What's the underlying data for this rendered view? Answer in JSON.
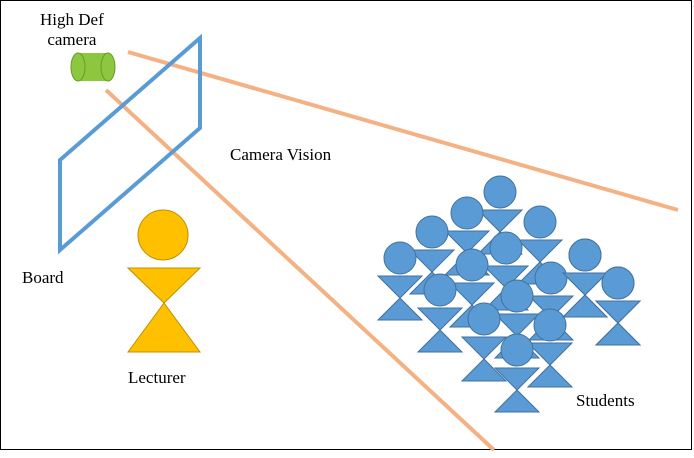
{
  "labels": {
    "camera_line1": "High Def",
    "camera_line2": "camera",
    "camera_vision": "Camera Vision",
    "board": "Board",
    "lecturer": "Lecturer",
    "students": "Students"
  },
  "colors": {
    "camera_fill": "#8dc63f",
    "camera_stroke": "#6a9a2a",
    "board_stroke": "#5b9bd5",
    "vision_line": "#f4b183",
    "lecturer_fill": "#ffc000",
    "lecturer_stroke": "#bf9000",
    "student_fill": "#5b9bd5",
    "student_stroke": "#41719c"
  },
  "student_count": 17
}
